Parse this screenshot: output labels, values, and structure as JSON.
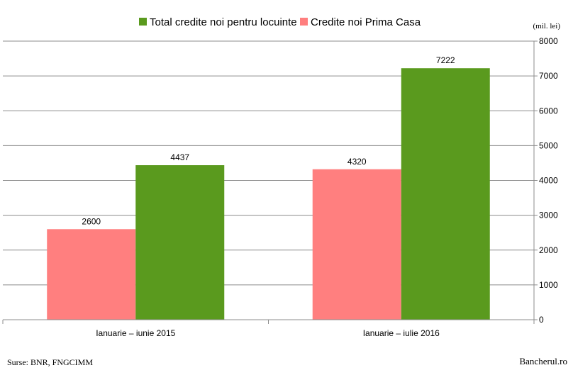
{
  "chart_data": {
    "type": "bar",
    "categories": [
      "Ianuarie – iunie 2015",
      "Ianuarie – iulie 2016"
    ],
    "series": [
      {
        "name": "Credite noi Prima Casa",
        "values": [
          2600,
          4320
        ],
        "color": "#ff7f7f"
      },
      {
        "name": "Total credite noi pentru locuinte",
        "values": [
          4437,
          7222
        ],
        "color": "#5a9a1e"
      }
    ],
    "legend_order": [
      1,
      0
    ],
    "legend_position": "top-center",
    "ylim": [
      0,
      8000
    ],
    "ytick_step": 1000,
    "yaxis_side": "right",
    "ylabel": "(mil. lei)",
    "xlabel": "",
    "grid": true,
    "data_labels": true
  },
  "footer": {
    "source": "Surse: BNR, FNGCIMM",
    "brand": "Bancherul.ro"
  }
}
